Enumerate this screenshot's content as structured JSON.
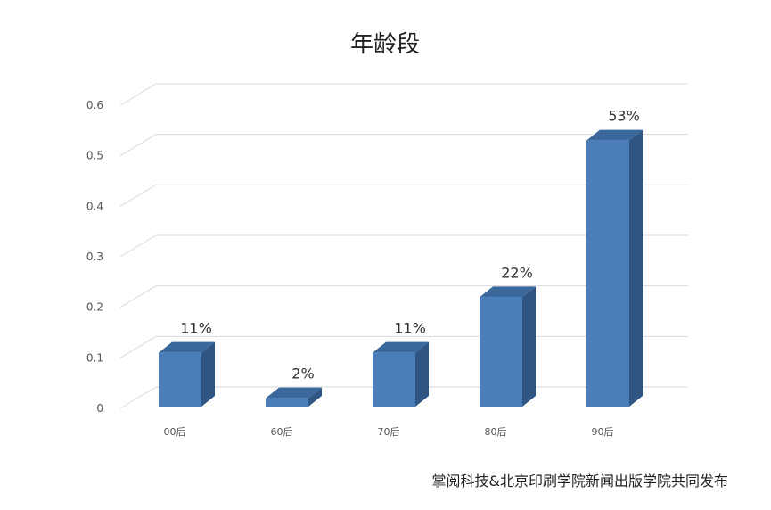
{
  "chart_data": {
    "type": "bar",
    "title": "年龄段",
    "categories": [
      "00后",
      "60后",
      "70后",
      "80后",
      "90后"
    ],
    "values": [
      0.11,
      0.02,
      0.11,
      0.22,
      0.53
    ],
    "data_labels": [
      "11%",
      "2%",
      "11%",
      "22%",
      "53%"
    ],
    "y_ticks": [
      "0",
      "0.1",
      "0.2",
      "0.3",
      "0.4",
      "0.5",
      "0.6"
    ],
    "ylim": [
      0,
      0.6
    ],
    "grid": true,
    "legend": "none",
    "colors": {
      "bar_front": "#4a7ebb",
      "bar_side": "#2f5583",
      "bar_top": "#3a679c",
      "grid": "#d9d9d9"
    }
  },
  "footer": {
    "source": "掌阅科技&北京印刷学院新闻出版学院共同发布"
  }
}
